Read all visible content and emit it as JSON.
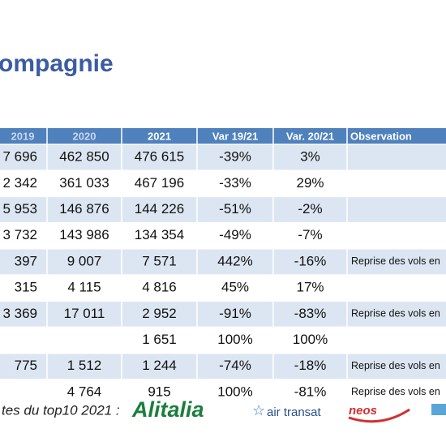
{
  "title": "ompagnie",
  "table": {
    "header": [
      "2019",
      "2020",
      "2021",
      "Var 19/21",
      "Var. 20/21",
      "Observation"
    ],
    "rows": [
      [
        "7 696",
        "462 850",
        "476 615",
        "-39%",
        "3%",
        null
      ],
      [
        "2 342",
        "361 033",
        "467 196",
        "-33%",
        "29%",
        null
      ],
      [
        "5 953",
        "146 876",
        "144 226",
        "-51%",
        "-2%",
        null
      ],
      [
        "3 732",
        "143 986",
        "134 354",
        "-49%",
        "-7%",
        null
      ],
      [
        "397",
        "9 007",
        "7 571",
        "442%",
        "-16%",
        "Reprise des vols en"
      ],
      [
        "315",
        "4 115",
        "4 816",
        "45%",
        "17%",
        null
      ],
      [
        "3 369",
        "17 011",
        "2 952",
        "-91%",
        "-83%",
        "Reprise des vols en"
      ],
      [
        null,
        null,
        "1 651",
        "100%",
        "100%",
        null
      ],
      [
        "775",
        "1 512",
        "1 244",
        "-74%",
        "-18%",
        "Reprise des vols en"
      ],
      [
        null,
        "4 764",
        "915",
        "100%",
        "-81%",
        "Reprise des vols en"
      ]
    ]
  },
  "footer": {
    "label": "tes du top10 2021 :",
    "logos": [
      "Alitalia",
      "air transat",
      "neos"
    ]
  }
}
